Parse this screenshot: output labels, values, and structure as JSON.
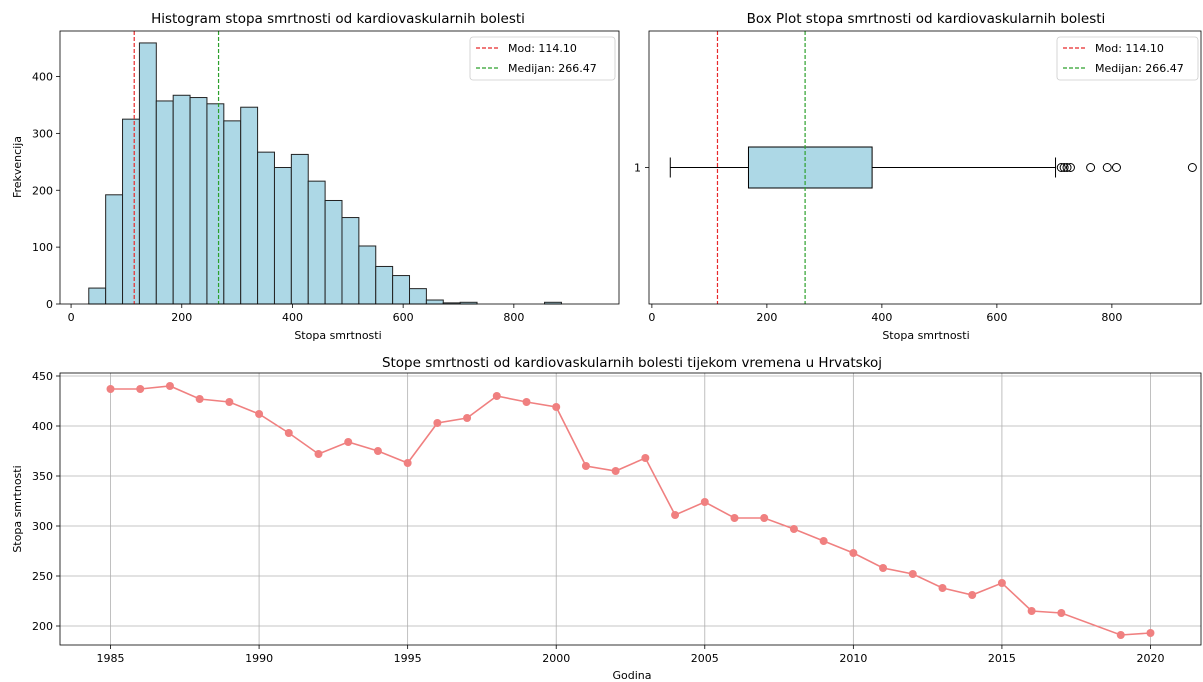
{
  "colors": {
    "bar_fill": "#add8e6",
    "bar_edge": "#222222",
    "mode_line": "#e8292b",
    "median_line": "#2ca02c",
    "line_series": "#f08080",
    "grid": "#b0b0b0"
  },
  "chart_data": [
    {
      "type": "bar",
      "subtype": "histogram",
      "title": "Histogram stopa smrtnosti od kardiovaskularnih bolesti",
      "xlabel": "Stopa smrtnosti",
      "ylabel": "Frekvencija",
      "xlim": [
        -20,
        990
      ],
      "ylim": [
        0,
        480
      ],
      "xticks": [
        0,
        200,
        400,
        600,
        800
      ],
      "yticks": [
        0,
        100,
        200,
        300,
        400
      ],
      "bin_start": 32,
      "bin_width": 30.5,
      "counts": [
        28,
        192,
        325,
        459,
        357,
        367,
        363,
        352,
        322,
        346,
        267,
        240,
        263,
        216,
        182,
        152,
        102,
        66,
        50,
        27,
        7,
        2,
        3,
        0,
        0,
        0,
        0,
        3,
        0,
        0
      ],
      "reference_lines": [
        {
          "label": "Mod: 114.10",
          "value": 114.1,
          "color": "#e8292b"
        },
        {
          "label": "Medijan: 266.47",
          "value": 266.47,
          "color": "#2ca02c"
        }
      ],
      "legend": "top-right",
      "grid": false
    },
    {
      "type": "box",
      "title": "Box Plot stopa smrtnosti od kardiovaskularnih bolesti",
      "xlabel": "Stopa smrtnosti",
      "ylabel": "",
      "xlim": [
        -5,
        955
      ],
      "xticks": [
        0,
        200,
        400,
        600,
        800
      ],
      "yticks": [
        "1"
      ],
      "box": {
        "whisker_low": 32,
        "q1": 168,
        "median": 266.47,
        "q3": 383,
        "whisker_high": 702
      },
      "outliers": [
        712,
        717,
        722,
        728,
        763,
        792,
        808,
        940
      ],
      "reference_lines": [
        {
          "label": "Mod: 114.10",
          "value": 114.1,
          "color": "#e8292b"
        },
        {
          "label": "Medijan: 266.47",
          "value": 266.47,
          "color": "#2ca02c"
        }
      ],
      "legend": "top-right",
      "grid": false
    },
    {
      "type": "line",
      "title": "Stope smrtnosti od kardiovaskularnih bolesti tijekom vremena u Hrvatskoj",
      "xlabel": "Godina",
      "ylabel": "Stopa smrtnosti",
      "xlim": [
        1983.3,
        2021.7
      ],
      "ylim": [
        181,
        453
      ],
      "xticks": [
        1985,
        1990,
        1995,
        2000,
        2005,
        2010,
        2015,
        2020
      ],
      "yticks": [
        200,
        250,
        300,
        350,
        400,
        450
      ],
      "grid": true,
      "x": [
        1985,
        1986,
        1987,
        1988,
        1989,
        1990,
        1991,
        1992,
        1993,
        1994,
        1995,
        1996,
        1997,
        1998,
        1999,
        2000,
        2001,
        2002,
        2003,
        2004,
        2005,
        2006,
        2007,
        2008,
        2009,
        2010,
        2011,
        2012,
        2013,
        2014,
        2015,
        2016,
        2017,
        2019,
        2020
      ],
      "y": [
        437,
        437,
        440,
        427,
        424,
        412,
        393,
        372,
        384,
        375,
        363,
        403,
        408,
        430,
        424,
        419,
        360,
        355,
        368,
        311,
        324,
        308,
        308,
        297,
        285,
        273,
        258,
        252,
        238,
        231,
        243,
        215,
        213,
        191,
        193
      ]
    }
  ]
}
